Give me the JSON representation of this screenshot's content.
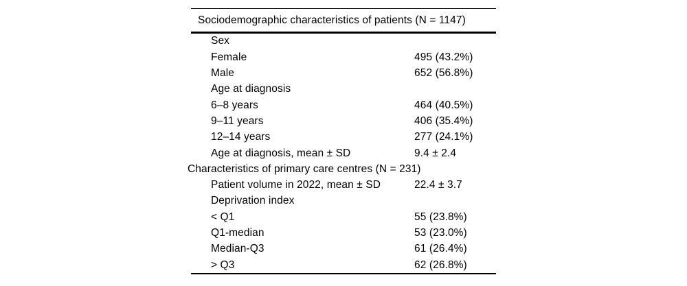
{
  "colors": {
    "text": "#000000",
    "background": "#ffffff",
    "rule": "#000000"
  },
  "table": {
    "title": "Sociodemographic characteristics of patients (N = 1147)",
    "rows": [
      {
        "label": "Sex",
        "value": "",
        "type": "item"
      },
      {
        "label": "Female",
        "value": "495 (43.2%)",
        "type": "item"
      },
      {
        "label": "Male",
        "value": "652 (56.8%)",
        "type": "item"
      },
      {
        "label": "Age at diagnosis",
        "value": "",
        "type": "item"
      },
      {
        "label": "6–8 years",
        "value": "464 (40.5%)",
        "type": "item"
      },
      {
        "label": "9–11 years",
        "value": "406 (35.4%)",
        "type": "item"
      },
      {
        "label": "12–14 years",
        "value": "277 (24.1%)",
        "type": "item"
      },
      {
        "label": "Age at diagnosis, mean ± SD",
        "value": "9.4 ± 2.4",
        "type": "item"
      },
      {
        "label": "Characteristics of primary care centres (N = 231)",
        "value": "",
        "type": "section"
      },
      {
        "label": "Patient volume in 2022, mean ± SD",
        "value": "22.4 ± 3.7",
        "type": "item"
      },
      {
        "label": "Deprivation index",
        "value": "",
        "type": "item"
      },
      {
        "label": "< Q1",
        "value": "55 (23.8%)",
        "type": "item"
      },
      {
        "label": "Q1-median",
        "value": "53 (23.0%)",
        "type": "item"
      },
      {
        "label": "Median-Q3",
        "value": "61 (26.4%)",
        "type": "item"
      },
      {
        "label": "> Q3",
        "value": "62 (26.8%)",
        "type": "item"
      }
    ]
  }
}
